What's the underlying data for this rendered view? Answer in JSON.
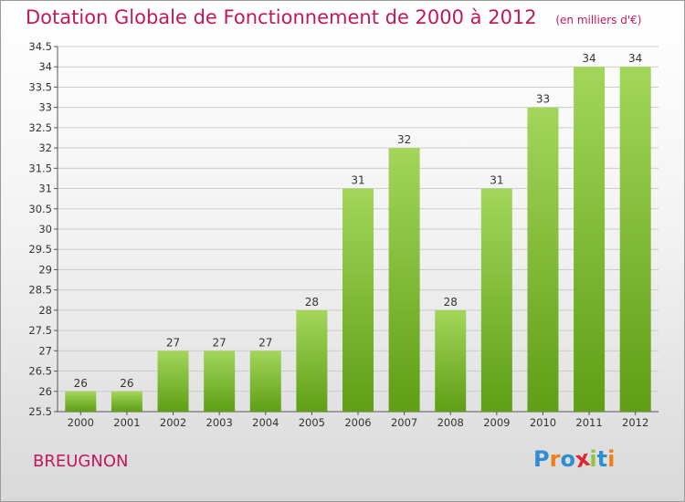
{
  "header": {
    "title": "Dotation Globale de Fonctionnement de 2000 à 2012",
    "unit": "(en milliers d'€)"
  },
  "commune": "BREUGNON",
  "logo": {
    "text": "Proxiti",
    "letter_colors": [
      "#2d8fd1",
      "#f07f1b",
      "#2d8fd1",
      "#e3262f",
      "#8dc63f",
      "#2d8fd1",
      "#f07f1b"
    ]
  },
  "colors": {
    "title": "#c2185b",
    "bar_top": "#a3d65a",
    "bar_bottom": "#5f9e15",
    "grid": "#cccccc",
    "text": "#333333"
  },
  "chart_data": {
    "type": "bar",
    "categories": [
      "2000",
      "2001",
      "2002",
      "2003",
      "2004",
      "2005",
      "2006",
      "2007",
      "2008",
      "2009",
      "2010",
      "2011",
      "2012"
    ],
    "values": [
      26,
      26,
      27,
      27,
      27,
      28,
      31,
      32,
      28,
      31,
      33,
      34,
      34
    ],
    "data_labels": [
      "26",
      "26",
      "27",
      "27",
      "27",
      "28",
      "31",
      "32",
      "28",
      "31",
      "33",
      "34",
      "34"
    ],
    "ylim": [
      25.5,
      34.5
    ],
    "yticks": [
      "25.5",
      "26",
      "26.5",
      "27",
      "27.5",
      "28",
      "28.5",
      "29",
      "29.5",
      "30",
      "30.5",
      "31",
      "31.5",
      "32",
      "32.5",
      "33",
      "33.5",
      "34",
      "34.5"
    ],
    "grid": true,
    "xlabel": "",
    "ylabel": ""
  }
}
